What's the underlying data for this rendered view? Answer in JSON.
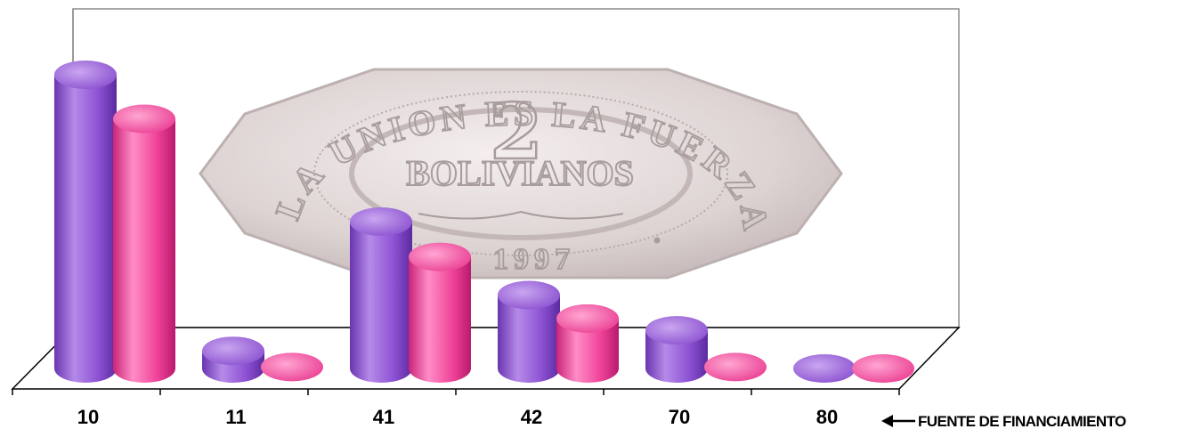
{
  "chart_data": {
    "type": "bar",
    "categories": [
      "10",
      "11",
      "41",
      "42",
      "70",
      "80"
    ],
    "series": [
      {
        "values": [
          100,
          6,
          50,
          25,
          13,
          0
        ],
        "color": "#8e52d4"
      },
      {
        "values": [
          85,
          0.5,
          38,
          17,
          0.5,
          0
        ],
        "color": "#f0449a"
      }
    ],
    "ylim": [
      0,
      100
    ],
    "grid": false,
    "legend": "none",
    "axis_note": "FUENTE  DE FINANCIAMIENTO",
    "background_image": {
      "type": "coin",
      "texts": {
        "denomination": "2",
        "unit": "BOLIVIANOS",
        "motto": "LA UNION ES LA FUERZA",
        "year": "1997"
      }
    }
  }
}
